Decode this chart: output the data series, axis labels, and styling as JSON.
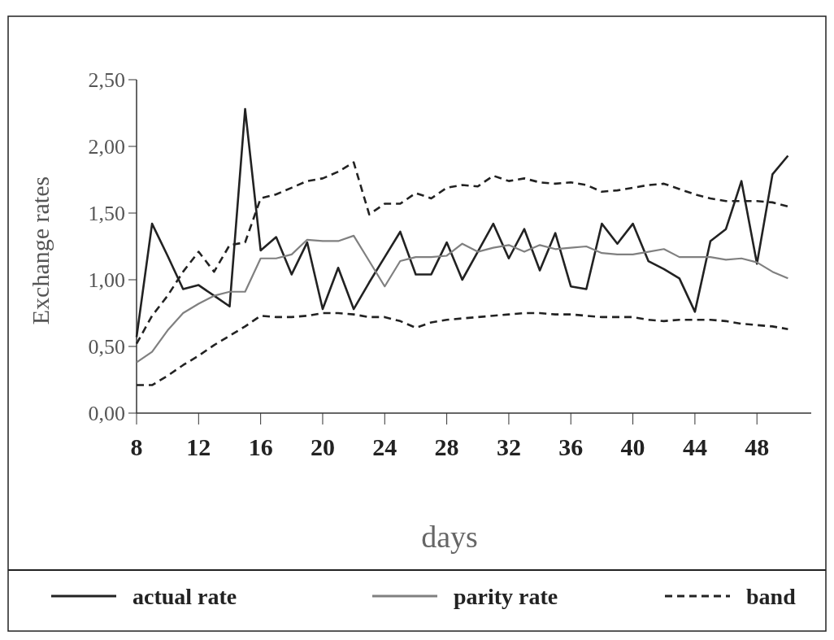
{
  "chart_data": {
    "type": "line",
    "xlabel": "days",
    "ylabel": "Exchange rates",
    "x": [
      8,
      9,
      10,
      11,
      12,
      13,
      14,
      15,
      16,
      17,
      18,
      19,
      20,
      21,
      22,
      23,
      24,
      25,
      26,
      27,
      28,
      29,
      30,
      31,
      32,
      33,
      34,
      35,
      36,
      37,
      38,
      39,
      40,
      41,
      42,
      43,
      44,
      45,
      46,
      47,
      48,
      49,
      50
    ],
    "xlim": [
      8,
      51.5
    ],
    "xticks": [
      8,
      12,
      16,
      20,
      24,
      28,
      32,
      36,
      40,
      44,
      48
    ],
    "ylim": [
      0,
      2.5
    ],
    "yticks": [
      {
        "value": 0,
        "label": "0,00"
      },
      {
        "value": 0.5,
        "label": "0,50"
      },
      {
        "value": 1,
        "label": "1,00"
      },
      {
        "value": 1.5,
        "label": "1,50"
      },
      {
        "value": 2,
        "label": "2,00"
      },
      {
        "value": 2.5,
        "label": "2,50"
      }
    ],
    "grid": false,
    "legend": "bottom",
    "marker": "none",
    "series": [
      {
        "name": "actual rate",
        "color": "#222222",
        "line_style": "solid",
        "values": [
          0.57,
          1.42,
          1.18,
          0.93,
          0.96,
          0.88,
          0.8,
          2.28,
          1.22,
          1.32,
          1.04,
          1.28,
          0.78,
          1.09,
          0.78,
          0.98,
          1.17,
          1.36,
          1.04,
          1.04,
          1.28,
          1.0,
          1.21,
          1.42,
          1.16,
          1.38,
          1.07,
          1.35,
          0.95,
          0.93,
          1.42,
          1.27,
          1.42,
          1.14,
          1.08,
          1.01,
          0.76,
          1.29,
          1.38,
          1.74,
          1.12,
          1.79,
          1.93
        ]
      },
      {
        "name": "parity rate",
        "color": "#808080",
        "line_style": "solid",
        "values": [
          0.38,
          0.46,
          0.62,
          0.75,
          0.82,
          0.88,
          0.91,
          0.91,
          1.16,
          1.16,
          1.19,
          1.3,
          1.29,
          1.29,
          1.33,
          1.14,
          0.95,
          1.14,
          1.17,
          1.17,
          1.18,
          1.27,
          1.21,
          1.24,
          1.26,
          1.21,
          1.26,
          1.23,
          1.24,
          1.25,
          1.2,
          1.19,
          1.19,
          1.21,
          1.23,
          1.17,
          1.17,
          1.17,
          1.15,
          1.16,
          1.13,
          1.06,
          1.01
        ]
      },
      {
        "name": "band",
        "color": "#222222",
        "line_style": "dashed",
        "values": [
          0.52,
          0.73,
          0.88,
          1.06,
          1.21,
          1.06,
          1.26,
          1.28,
          1.61,
          1.64,
          1.69,
          1.74,
          1.76,
          1.81,
          1.88,
          1.49,
          1.57,
          1.57,
          1.65,
          1.61,
          1.69,
          1.71,
          1.7,
          1.78,
          1.74,
          1.76,
          1.73,
          1.72,
          1.73,
          1.71,
          1.66,
          1.67,
          1.69,
          1.71,
          1.72,
          1.68,
          1.64,
          1.61,
          1.59,
          1.59,
          1.59,
          1.58,
          1.55
        ]
      },
      {
        "color": "#222222",
        "line_style": "dashed",
        "values": [
          0.21,
          0.21,
          0.28,
          0.36,
          0.43,
          0.51,
          0.58,
          0.65,
          0.73,
          0.72,
          0.72,
          0.73,
          0.75,
          0.75,
          0.74,
          0.72,
          0.72,
          0.69,
          0.64,
          0.68,
          0.7,
          0.71,
          0.72,
          0.73,
          0.74,
          0.75,
          0.75,
          0.74,
          0.74,
          0.73,
          0.72,
          0.72,
          0.72,
          0.7,
          0.69,
          0.7,
          0.7,
          0.7,
          0.69,
          0.67,
          0.66,
          0.65,
          0.63
        ]
      }
    ]
  }
}
